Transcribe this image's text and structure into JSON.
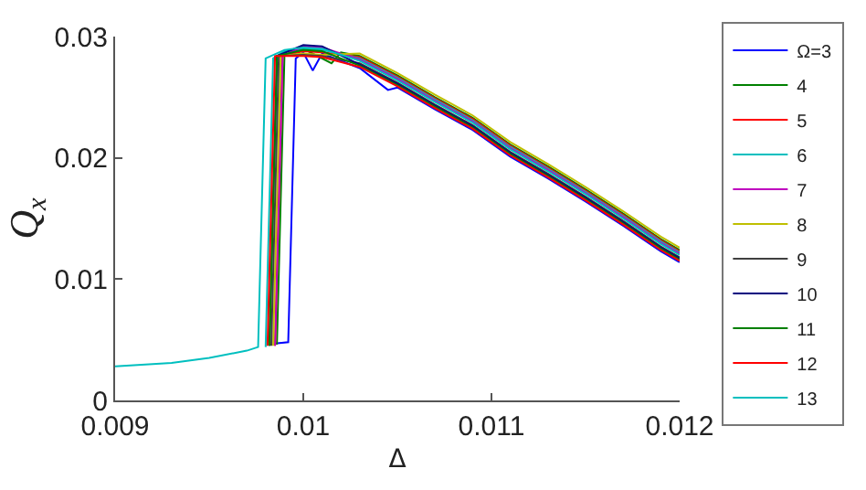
{
  "chart_data": {
    "type": "line",
    "xlabel": "Δ",
    "ylabel": "Q$_{x}$",
    "xlim": [
      0.009,
      0.012
    ],
    "xticks": [
      0.009,
      0.01,
      0.011,
      0.012
    ],
    "ylim": [
      0,
      0.03
    ],
    "yticks": [
      0,
      0.01,
      0.02,
      0.03
    ],
    "legend": "right",
    "marker": "none",
    "line_style": "solid",
    "series": [
      {
        "name": "Ω=3",
        "color": "#0000ff",
        "x": [
          0.00985,
          0.00992,
          0.00996,
          0.01,
          0.01005,
          0.0101,
          0.0103,
          0.01045,
          0.0105,
          0.0107,
          0.0109,
          0.0111,
          0.0113,
          0.0115,
          0.0117,
          0.0119,
          0.012
        ],
        "values": [
          0.0047,
          0.0048,
          0.0282,
          0.0287,
          0.0272,
          0.0286,
          0.0274,
          0.0256,
          0.0258,
          0.024,
          0.0223,
          0.0201,
          0.0183,
          0.0164,
          0.0144,
          0.0123,
          0.0114
        ]
      },
      {
        "name": "4",
        "color": "#008000",
        "x": [
          0.00986,
          0.0099,
          0.01,
          0.01015,
          0.0102,
          0.0103,
          0.0105,
          0.0107,
          0.0109,
          0.0111,
          0.0113,
          0.0115,
          0.0117,
          0.0119,
          0.012
        ],
        "values": [
          0.0046,
          0.0284,
          0.029,
          0.0278,
          0.0287,
          0.0284,
          0.0268,
          0.025,
          0.0233,
          0.0211,
          0.0193,
          0.0174,
          0.0154,
          0.0133,
          0.0124
        ]
      },
      {
        "name": "5",
        "color": "#ff0000",
        "x": [
          0.00985,
          0.00989,
          0.01,
          0.0101,
          0.0103,
          0.0105,
          0.0107,
          0.0109,
          0.0111,
          0.0113,
          0.0115,
          0.0117,
          0.0119,
          0.012
        ],
        "values": [
          0.0045,
          0.0284,
          0.0288,
          0.0287,
          0.0283,
          0.0267,
          0.0249,
          0.0232,
          0.021,
          0.0192,
          0.0173,
          0.0153,
          0.0132,
          0.0123
        ]
      },
      {
        "name": "6",
        "color": "#00bfbf",
        "x": [
          0.0098,
          0.00984,
          0.0099,
          0.01,
          0.0101,
          0.0103,
          0.0105,
          0.0107,
          0.0109,
          0.0111,
          0.0113,
          0.0115,
          0.0117,
          0.0119,
          0.012
        ],
        "values": [
          0.0044,
          0.0282,
          0.0288,
          0.029,
          0.0289,
          0.0282,
          0.0266,
          0.0248,
          0.0231,
          0.0209,
          0.0191,
          0.0172,
          0.0152,
          0.0131,
          0.0122
        ]
      },
      {
        "name": "7",
        "color": "#bf00bf",
        "x": [
          0.00985,
          0.00989,
          0.01,
          0.0101,
          0.0103,
          0.0105,
          0.0107,
          0.0109,
          0.0111,
          0.0113,
          0.0115,
          0.0117,
          0.0119,
          0.012
        ],
        "values": [
          0.0045,
          0.0284,
          0.0292,
          0.0291,
          0.0281,
          0.0265,
          0.0247,
          0.023,
          0.0208,
          0.019,
          0.0171,
          0.0151,
          0.013,
          0.0121
        ]
      },
      {
        "name": "8",
        "color": "#bfbf00",
        "x": [
          0.00984,
          0.00988,
          0.01,
          0.0101,
          0.0103,
          0.0105,
          0.0107,
          0.0109,
          0.0111,
          0.0113,
          0.0115,
          0.0117,
          0.0119,
          0.012
        ],
        "values": [
          0.0045,
          0.0284,
          0.0286,
          0.0285,
          0.0286,
          0.027,
          0.0252,
          0.0235,
          0.0213,
          0.0195,
          0.0176,
          0.0156,
          0.0135,
          0.0126
        ]
      },
      {
        "name": "9",
        "color": "#404040",
        "x": [
          0.00983,
          0.00987,
          0.01,
          0.0101,
          0.0103,
          0.0105,
          0.0107,
          0.0109,
          0.0111,
          0.0113,
          0.0115,
          0.0117,
          0.0119,
          0.012
        ],
        "values": [
          0.0045,
          0.0284,
          0.0285,
          0.0284,
          0.0278,
          0.0262,
          0.0244,
          0.0227,
          0.0205,
          0.0187,
          0.0168,
          0.0148,
          0.0127,
          0.0118
        ]
      },
      {
        "name": "10",
        "color": "#00007f",
        "x": [
          0.00982,
          0.00986,
          0.01,
          0.0101,
          0.0103,
          0.0105,
          0.0107,
          0.0109,
          0.0111,
          0.0113,
          0.0115,
          0.0117,
          0.0119,
          0.012
        ],
        "values": [
          0.0045,
          0.0284,
          0.0293,
          0.0292,
          0.0277,
          0.0261,
          0.0243,
          0.0226,
          0.0204,
          0.0186,
          0.0167,
          0.0147,
          0.0126,
          0.0117
        ]
      },
      {
        "name": "11",
        "color": "#007f00",
        "x": [
          0.00982,
          0.00986,
          0.01,
          0.0101,
          0.0103,
          0.0105,
          0.0107,
          0.0109,
          0.0111,
          0.0113,
          0.0115,
          0.0117,
          0.0119,
          0.012
        ],
        "values": [
          0.0045,
          0.0284,
          0.0289,
          0.0288,
          0.0276,
          0.026,
          0.0242,
          0.0225,
          0.0203,
          0.0185,
          0.0166,
          0.0146,
          0.0125,
          0.0116
        ]
      },
      {
        "name": "12",
        "color": "#ff0000",
        "x": [
          0.00981,
          0.00985,
          0.01,
          0.0101,
          0.0103,
          0.0105,
          0.0107,
          0.0109,
          0.0111,
          0.0113,
          0.0115,
          0.0117,
          0.0119,
          0.012
        ],
        "values": [
          0.0045,
          0.0284,
          0.0284,
          0.0283,
          0.0275,
          0.0259,
          0.0241,
          0.0224,
          0.0202,
          0.0184,
          0.0165,
          0.0145,
          0.0124,
          0.0115
        ]
      },
      {
        "name": "13",
        "color": "#00bfbf",
        "x": [
          0.009,
          0.0093,
          0.0095,
          0.0097,
          0.00976,
          0.0098,
          0.0099,
          0.01,
          0.0101,
          0.0103,
          0.0105,
          0.0107,
          0.0109,
          0.0111,
          0.0113,
          0.0115,
          0.0117,
          0.0119,
          0.012
        ],
        "values": [
          0.0028,
          0.0031,
          0.0035,
          0.0041,
          0.0044,
          0.0282,
          0.0289,
          0.0291,
          0.029,
          0.028,
          0.0264,
          0.0246,
          0.0229,
          0.0207,
          0.0189,
          0.017,
          0.015,
          0.0129,
          0.012
        ]
      }
    ]
  }
}
